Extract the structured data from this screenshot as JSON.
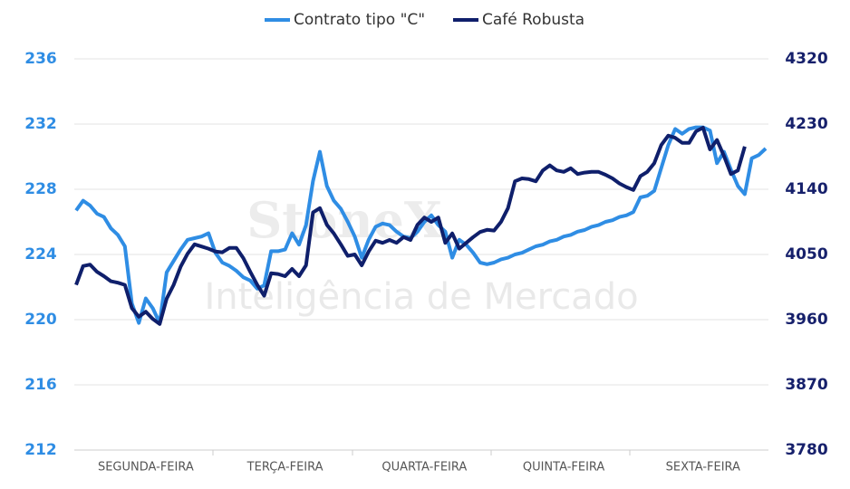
{
  "chart_data": {
    "type": "line",
    "watermark": [
      "StoneX",
      "Inteligência de Mercado"
    ],
    "categories": [
      null,
      null,
      null,
      null,
      null,
      null,
      null,
      null,
      null,
      null,
      "SEGUNDA-FEIRA",
      null,
      null,
      null,
      null,
      null,
      null,
      null,
      null,
      null,
      null,
      null,
      null,
      null,
      null,
      null,
      null,
      null,
      null,
      null,
      "TERÇA-FEIRA",
      null,
      null,
      null,
      null,
      null,
      null,
      null,
      null,
      null,
      null,
      null,
      null,
      null,
      null,
      null,
      null,
      null,
      null,
      null,
      "QUARTA-FEIRA",
      null,
      null,
      null,
      null,
      null,
      null,
      null,
      null,
      null,
      null,
      null,
      null,
      null,
      null,
      null,
      null,
      null,
      null,
      null,
      "QUINTA-FEIRA",
      null,
      null,
      null,
      null,
      null,
      null,
      null,
      null,
      null,
      null,
      null,
      null,
      null,
      null,
      null,
      null,
      null,
      null,
      null,
      "SEXTA-FEIRA",
      null,
      null,
      null,
      null,
      null,
      null,
      null,
      null,
      null
    ],
    "series": [
      {
        "name": "Contrato tipo \"C\"",
        "color": "#2f8de4",
        "axis": "y",
        "values": [
          226.7,
          227.3,
          227.0,
          226.5,
          226.3,
          225.6,
          225.2,
          224.5,
          221.0,
          219.8,
          221.3,
          220.7,
          219.8,
          222.9,
          223.6,
          224.3,
          224.9,
          225.0,
          225.1,
          225.3,
          224.1,
          223.5,
          223.3,
          223.0,
          222.6,
          222.4,
          221.9,
          222.1,
          224.2,
          224.2,
          224.3,
          225.3,
          224.6,
          225.8,
          228.5,
          230.3,
          228.2,
          227.3,
          226.8,
          226.0,
          225.1,
          223.8,
          224.9,
          225.7,
          225.9,
          225.8,
          225.4,
          225.1,
          225.0,
          225.4,
          226.0,
          226.4,
          225.8,
          225.4,
          223.8,
          224.9,
          224.6,
          224.1,
          223.5,
          223.4,
          223.5,
          223.7,
          223.8,
          224.0,
          224.1,
          224.3,
          224.5,
          224.6,
          224.8,
          224.9,
          225.1,
          225.2,
          225.4,
          225.5,
          225.7,
          225.8,
          226.0,
          226.1,
          226.3,
          226.4,
          226.6,
          227.5,
          227.6,
          227.9,
          229.3,
          230.7,
          231.7,
          231.4,
          231.7,
          231.8,
          231.8,
          231.6,
          229.6,
          230.3,
          229.2,
          228.2,
          227.7,
          229.9,
          230.1,
          230.5
        ]
      },
      {
        "name": "Café Robusta",
        "color": "#0f1f6b",
        "axis": "y2",
        "values": [
          4008,
          4034,
          4036,
          4026,
          4020,
          4013,
          4011,
          4008,
          3976,
          3964,
          3971,
          3961,
          3954,
          3989,
          4008,
          4033,
          4051,
          4064,
          4061,
          4058,
          4054,
          4053,
          4059,
          4059,
          4045,
          4026,
          4008,
          3993,
          4024,
          4023,
          4020,
          4030,
          4020,
          4035,
          4108,
          4114,
          4091,
          4079,
          4064,
          4048,
          4050,
          4035,
          4054,
          4069,
          4066,
          4070,
          4066,
          4074,
          4070,
          4091,
          4101,
          4095,
          4101,
          4066,
          4079,
          4058,
          4066,
          4074,
          4081,
          4084,
          4083,
          4095,
          4114,
          4151,
          4155,
          4154,
          4151,
          4166,
          4173,
          4166,
          4164,
          4169,
          4161,
          4163,
          4164,
          4164,
          4160,
          4155,
          4148,
          4143,
          4139,
          4158,
          4164,
          4176,
          4201,
          4214,
          4211,
          4204,
          4204,
          4220,
          4225,
          4195,
          4208,
          4186,
          4161,
          4166,
          4199,
          null,
          null,
          null
        ]
      }
    ],
    "ylim": [
      212,
      236
    ],
    "yticks": [
      212,
      216,
      220,
      224,
      228,
      232,
      236
    ],
    "y2lim": [
      3780,
      4320
    ],
    "y2ticks": [
      3780,
      3870,
      3960,
      4050,
      4140,
      4230,
      4320
    ],
    "grid": true,
    "legend": "top"
  }
}
